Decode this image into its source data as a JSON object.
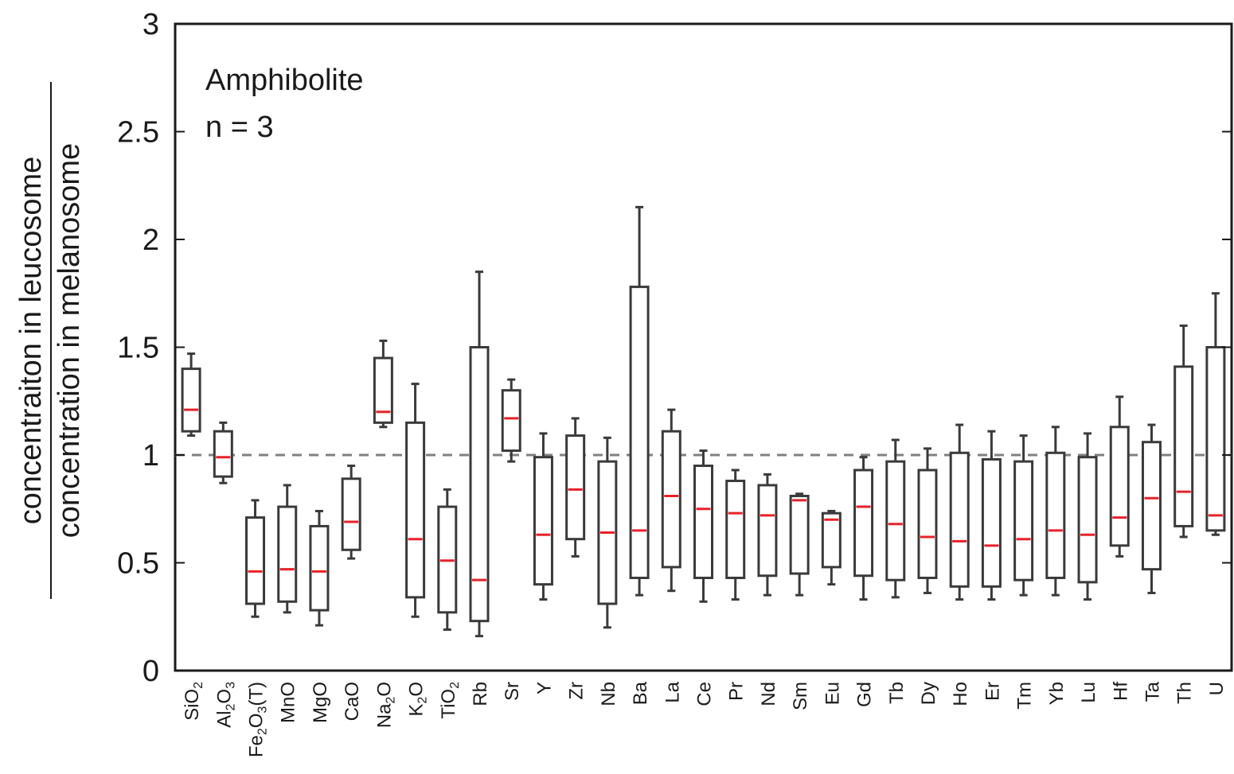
{
  "chart_data": {
    "type": "box",
    "title": "",
    "annotation": {
      "line1": "Amphibolite",
      "line2": "n = 3"
    },
    "ylabel_numerator": "concentraiton in leucosome",
    "ylabel_denominator": "concentration in melanosome",
    "ylim": [
      0,
      3
    ],
    "yticks": [
      {
        "value": 0,
        "label": "0"
      },
      {
        "value": 0.5,
        "label": "0.5"
      },
      {
        "value": 1,
        "label": "1"
      },
      {
        "value": 1.5,
        "label": "1.5"
      },
      {
        "value": 2,
        "label": "2"
      },
      {
        "value": 2.5,
        "label": "2.5"
      },
      {
        "value": 3,
        "label": "3"
      }
    ],
    "reference_line": 1,
    "colors": {
      "box": "#3a3a3a",
      "median": "#e8212a",
      "reference": "#808080"
    },
    "categories": [
      {
        "label": "SiO2",
        "base": "SiO",
        "sub": "2"
      },
      {
        "label": "Al2O3",
        "parts": [
          [
            "Al",
            ""
          ],
          [
            "2",
            "sub"
          ],
          [
            "O",
            ""
          ],
          [
            "3",
            "sub"
          ]
        ]
      },
      {
        "label": "Fe2O3(T)",
        "parts": [
          [
            "Fe",
            ""
          ],
          [
            "2",
            "sub"
          ],
          [
            "O",
            ""
          ],
          [
            "3",
            "sub"
          ],
          [
            "(T)",
            ""
          ]
        ]
      },
      {
        "label": "MnO"
      },
      {
        "label": "MgO"
      },
      {
        "label": "CaO"
      },
      {
        "label": "Na2O",
        "parts": [
          [
            "Na",
            ""
          ],
          [
            "2",
            "sub"
          ],
          [
            "O",
            ""
          ]
        ]
      },
      {
        "label": "K2O",
        "parts": [
          [
            "K",
            ""
          ],
          [
            "2",
            "sub"
          ],
          [
            "O",
            ""
          ]
        ]
      },
      {
        "label": "TiO2",
        "parts": [
          [
            "TiO",
            ""
          ],
          [
            "2",
            "sub"
          ]
        ]
      },
      {
        "label": "Rb"
      },
      {
        "label": "Sr"
      },
      {
        "label": "Y"
      },
      {
        "label": "Zr"
      },
      {
        "label": "Nb"
      },
      {
        "label": "Ba"
      },
      {
        "label": "La"
      },
      {
        "label": "Ce"
      },
      {
        "label": "Pr"
      },
      {
        "label": "Nd"
      },
      {
        "label": "Sm"
      },
      {
        "label": "Eu"
      },
      {
        "label": "Gd"
      },
      {
        "label": "Tb"
      },
      {
        "label": "Dy"
      },
      {
        "label": "Ho"
      },
      {
        "label": "Er"
      },
      {
        "label": "Tm"
      },
      {
        "label": "Yb"
      },
      {
        "label": "Lu"
      },
      {
        "label": "Hf"
      },
      {
        "label": "Ta"
      },
      {
        "label": "Th"
      },
      {
        "label": "U"
      }
    ],
    "boxes": [
      {
        "min": 1.09,
        "q1": 1.11,
        "median": 1.21,
        "q3": 1.4,
        "max": 1.47
      },
      {
        "min": 0.87,
        "q1": 0.9,
        "median": 0.99,
        "q3": 1.11,
        "max": 1.15
      },
      {
        "min": 0.25,
        "q1": 0.31,
        "median": 0.46,
        "q3": 0.71,
        "max": 0.79
      },
      {
        "min": 0.27,
        "q1": 0.32,
        "median": 0.47,
        "q3": 0.76,
        "max": 0.86
      },
      {
        "min": 0.21,
        "q1": 0.28,
        "median": 0.46,
        "q3": 0.67,
        "max": 0.74
      },
      {
        "min": 0.52,
        "q1": 0.56,
        "median": 0.69,
        "q3": 0.89,
        "max": 0.95
      },
      {
        "min": 1.13,
        "q1": 1.15,
        "median": 1.2,
        "q3": 1.45,
        "max": 1.53
      },
      {
        "min": 0.25,
        "q1": 0.34,
        "median": 0.61,
        "q3": 1.15,
        "max": 1.33
      },
      {
        "min": 0.19,
        "q1": 0.27,
        "median": 0.51,
        "q3": 0.76,
        "max": 0.84
      },
      {
        "min": 0.16,
        "q1": 0.23,
        "median": 0.42,
        "q3": 1.5,
        "max": 1.85
      },
      {
        "min": 0.97,
        "q1": 1.02,
        "median": 1.17,
        "q3": 1.3,
        "max": 1.35
      },
      {
        "min": 0.33,
        "q1": 0.4,
        "median": 0.63,
        "q3": 0.99,
        "max": 1.1
      },
      {
        "min": 0.53,
        "q1": 0.61,
        "median": 0.84,
        "q3": 1.09,
        "max": 1.17
      },
      {
        "min": 0.2,
        "q1": 0.31,
        "median": 0.64,
        "q3": 0.97,
        "max": 1.08
      },
      {
        "min": 0.35,
        "q1": 0.43,
        "median": 0.65,
        "q3": 1.78,
        "max": 2.15
      },
      {
        "min": 0.37,
        "q1": 0.48,
        "median": 0.81,
        "q3": 1.11,
        "max": 1.21
      },
      {
        "min": 0.32,
        "q1": 0.43,
        "median": 0.75,
        "q3": 0.95,
        "max": 1.02
      },
      {
        "min": 0.33,
        "q1": 0.43,
        "median": 0.73,
        "q3": 0.88,
        "max": 0.93
      },
      {
        "min": 0.35,
        "q1": 0.44,
        "median": 0.72,
        "q3": 0.86,
        "max": 0.91
      },
      {
        "min": 0.35,
        "q1": 0.45,
        "median": 0.79,
        "q3": 0.81,
        "max": 0.82
      },
      {
        "min": 0.4,
        "q1": 0.48,
        "median": 0.7,
        "q3": 0.73,
        "max": 0.74
      },
      {
        "min": 0.33,
        "q1": 0.44,
        "median": 0.76,
        "q3": 0.93,
        "max": 0.99
      },
      {
        "min": 0.34,
        "q1": 0.42,
        "median": 0.68,
        "q3": 0.97,
        "max": 1.07
      },
      {
        "min": 0.36,
        "q1": 0.43,
        "median": 0.62,
        "q3": 0.93,
        "max": 1.03
      },
      {
        "min": 0.33,
        "q1": 0.39,
        "median": 0.6,
        "q3": 1.01,
        "max": 1.14
      },
      {
        "min": 0.33,
        "q1": 0.39,
        "median": 0.58,
        "q3": 0.98,
        "max": 1.11
      },
      {
        "min": 0.35,
        "q1": 0.42,
        "median": 0.61,
        "q3": 0.97,
        "max": 1.09
      },
      {
        "min": 0.35,
        "q1": 0.43,
        "median": 0.65,
        "q3": 1.01,
        "max": 1.13
      },
      {
        "min": 0.33,
        "q1": 0.41,
        "median": 0.63,
        "q3": 0.99,
        "max": 1.1
      },
      {
        "min": 0.53,
        "q1": 0.58,
        "median": 0.71,
        "q3": 1.13,
        "max": 1.27
      },
      {
        "min": 0.36,
        "q1": 0.47,
        "median": 0.8,
        "q3": 1.06,
        "max": 1.14
      },
      {
        "min": 0.62,
        "q1": 0.67,
        "median": 0.83,
        "q3": 1.41,
        "max": 1.6
      },
      {
        "min": 0.63,
        "q1": 0.65,
        "median": 0.72,
        "q3": 1.5,
        "max": 1.75
      }
    ]
  }
}
